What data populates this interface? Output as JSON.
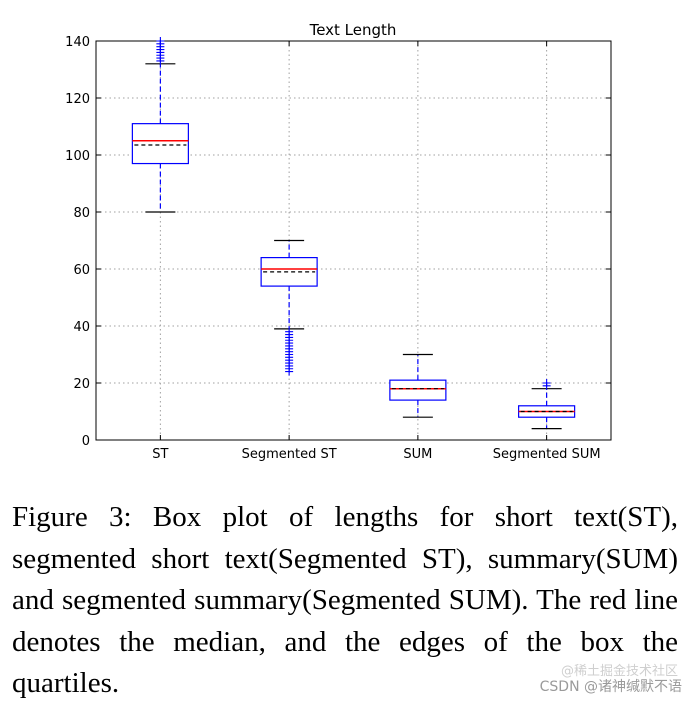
{
  "chart_data": {
    "type": "box",
    "title": "Text Length",
    "xlabel": "",
    "ylabel": "",
    "ylim": [
      0,
      140
    ],
    "yticks": [
      0,
      20,
      40,
      60,
      80,
      100,
      120,
      140
    ],
    "grid": true,
    "categories": [
      "ST",
      "Segmented ST",
      "SUM",
      "Segmented SUM"
    ],
    "boxes": [
      {
        "name": "ST",
        "whisker_low": 80,
        "q1": 97,
        "median": 105,
        "mean": 103.5,
        "q3": 111,
        "whisker_high": 132,
        "outliers": [
          133,
          134,
          135,
          136,
          137,
          138,
          139,
          140
        ]
      },
      {
        "name": "Segmented ST",
        "whisker_low": 39,
        "q1": 54,
        "median": 60,
        "mean": 59,
        "q3": 64,
        "whisker_high": 70,
        "outliers": [
          24,
          25,
          26,
          27,
          28,
          29,
          30,
          31,
          32,
          33,
          34,
          35,
          36,
          37,
          38
        ]
      },
      {
        "name": "SUM",
        "whisker_low": 8,
        "q1": 14,
        "median": 18,
        "mean": 18,
        "q3": 21,
        "whisker_high": 30,
        "outliers": []
      },
      {
        "name": "Segmented SUM",
        "whisker_low": 4,
        "q1": 8,
        "median": 10,
        "mean": 10,
        "q3": 12,
        "whisker_high": 18,
        "outliers": [
          19,
          20
        ]
      }
    ],
    "colors": {
      "box": "#0000ff",
      "median": "#ff0000",
      "mean": "#000000",
      "grid": "#a0a0a0"
    }
  },
  "caption": "Figure 3: Box plot of lengths for short text(ST), segmented short text(Segmented ST), summary(SUM) and segmented summary(Segmented SUM). The red line denotes the median, and the edges of the box the quartiles.",
  "watermark": {
    "main": "CSDN @诸神缄默不语",
    "faint": "@稀土掘金技术社区"
  }
}
